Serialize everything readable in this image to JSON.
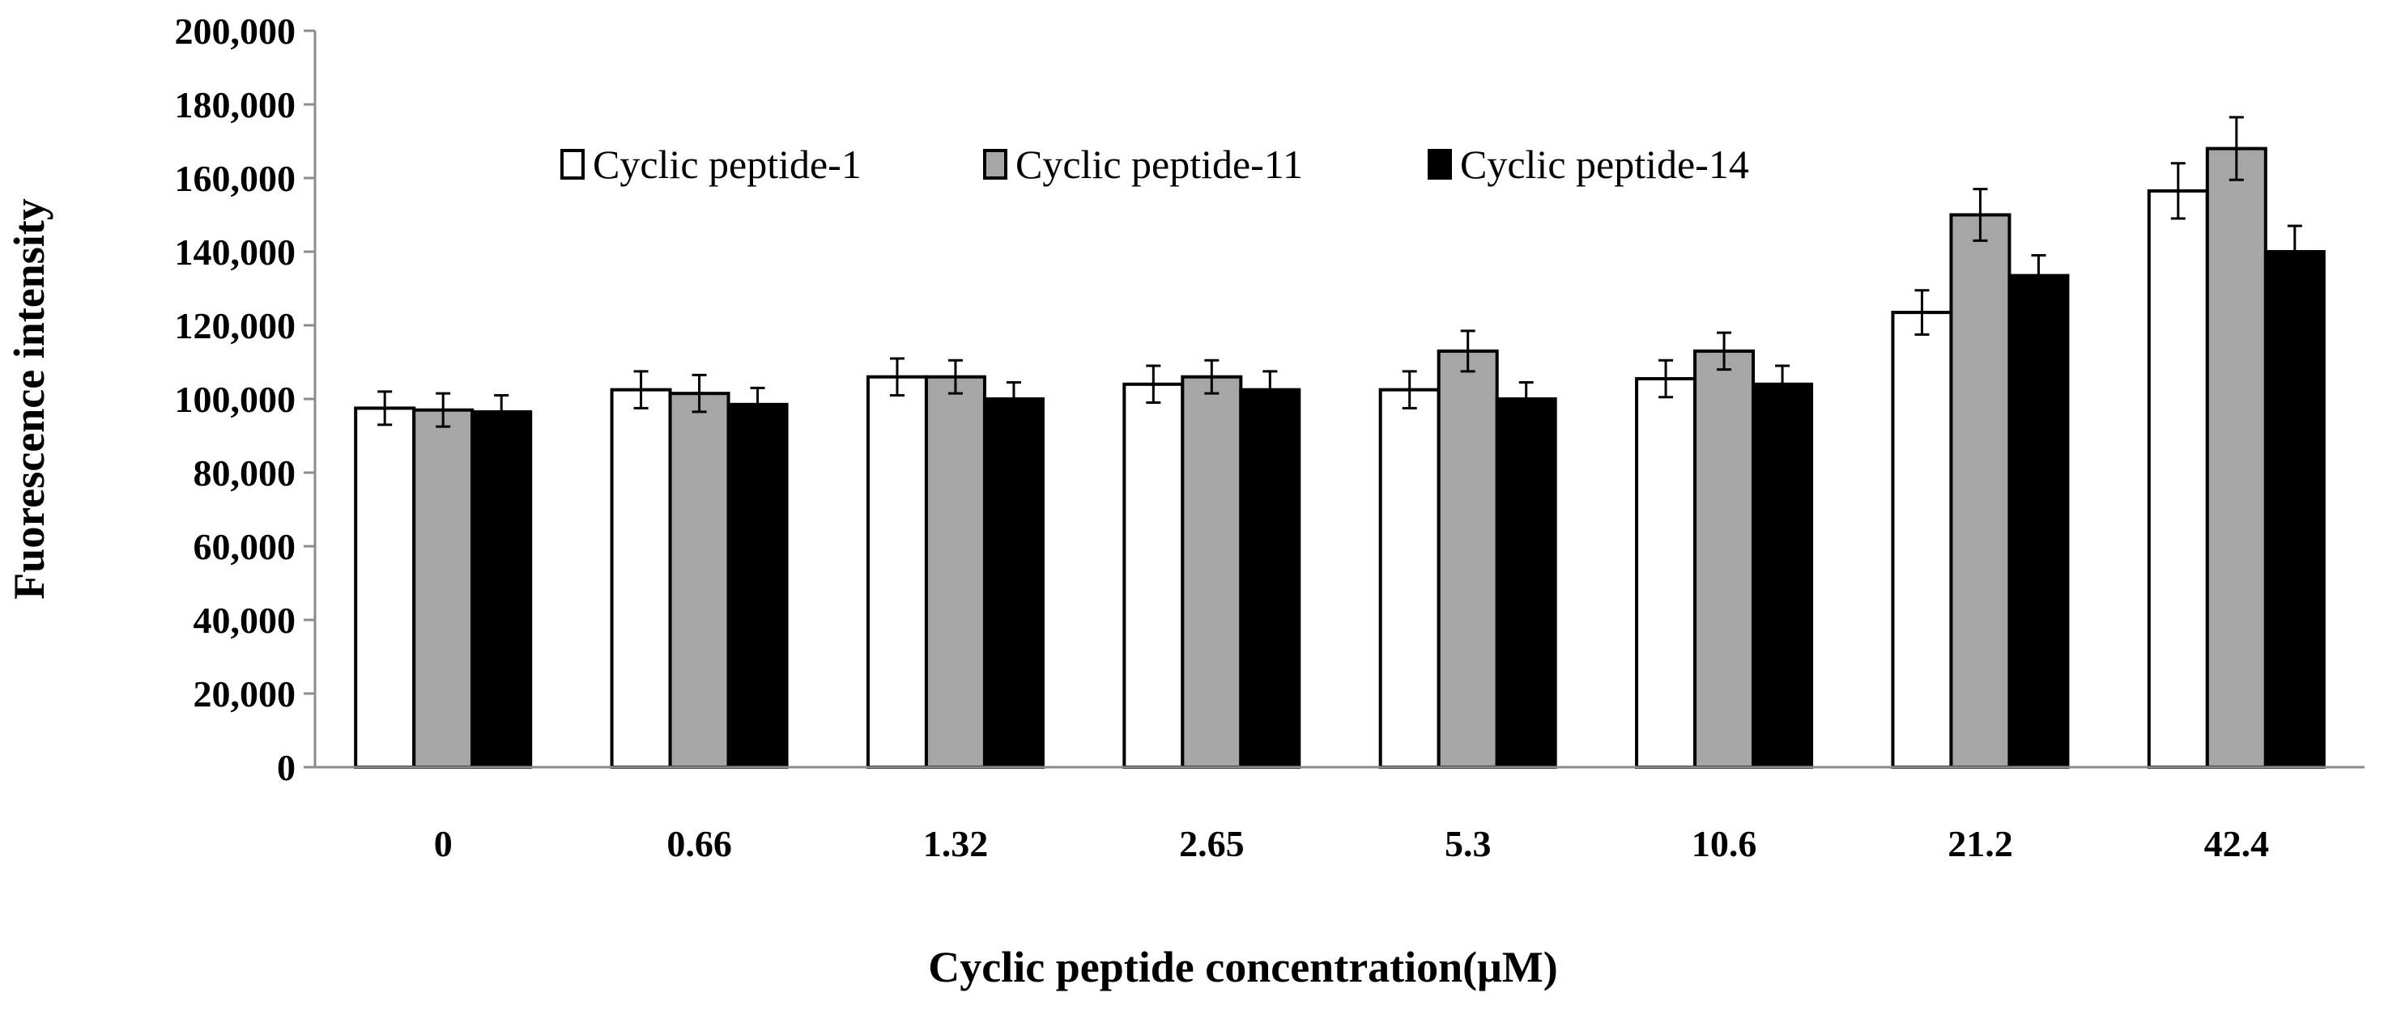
{
  "chart_data": {
    "type": "bar",
    "title": "",
    "xlabel": "Cyclic peptide concentration(μM)",
    "ylabel": "Fuorescence intensity",
    "ylim": [
      0,
      200000
    ],
    "ytick_labels": [
      "0",
      "20,000",
      "40,000",
      "60,000",
      "80,000",
      "100,000",
      "120,000",
      "140,000",
      "160,000",
      "180,000",
      "200,000"
    ],
    "categories": [
      "0",
      "0.66",
      "1.32",
      "2.65",
      "5.3",
      "10.6",
      "21.2",
      "42.4"
    ],
    "legend_position": "top-center",
    "series": [
      {
        "name": "Cyclic peptide-1",
        "color": "#ffffff",
        "values": [
          97500,
          102500,
          106000,
          104000,
          102500,
          105500,
          123500,
          156500
        ],
        "errors": [
          4500,
          5000,
          5000,
          5000,
          5000,
          5000,
          6000,
          7500
        ]
      },
      {
        "name": "Cyclic peptide-11",
        "color": "#a6a6a6",
        "values": [
          97000,
          101500,
          106000,
          106000,
          113000,
          113000,
          150000,
          168000
        ],
        "errors": [
          4500,
          5000,
          4500,
          4500,
          5500,
          5000,
          7000,
          8500
        ]
      },
      {
        "name": "Cyclic peptide-14",
        "color": "#000000",
        "values": [
          96500,
          98500,
          100000,
          102500,
          100000,
          104000,
          133500,
          140000
        ],
        "errors": [
          4500,
          4500,
          4500,
          5000,
          4500,
          5000,
          5500,
          7000
        ]
      }
    ]
  }
}
